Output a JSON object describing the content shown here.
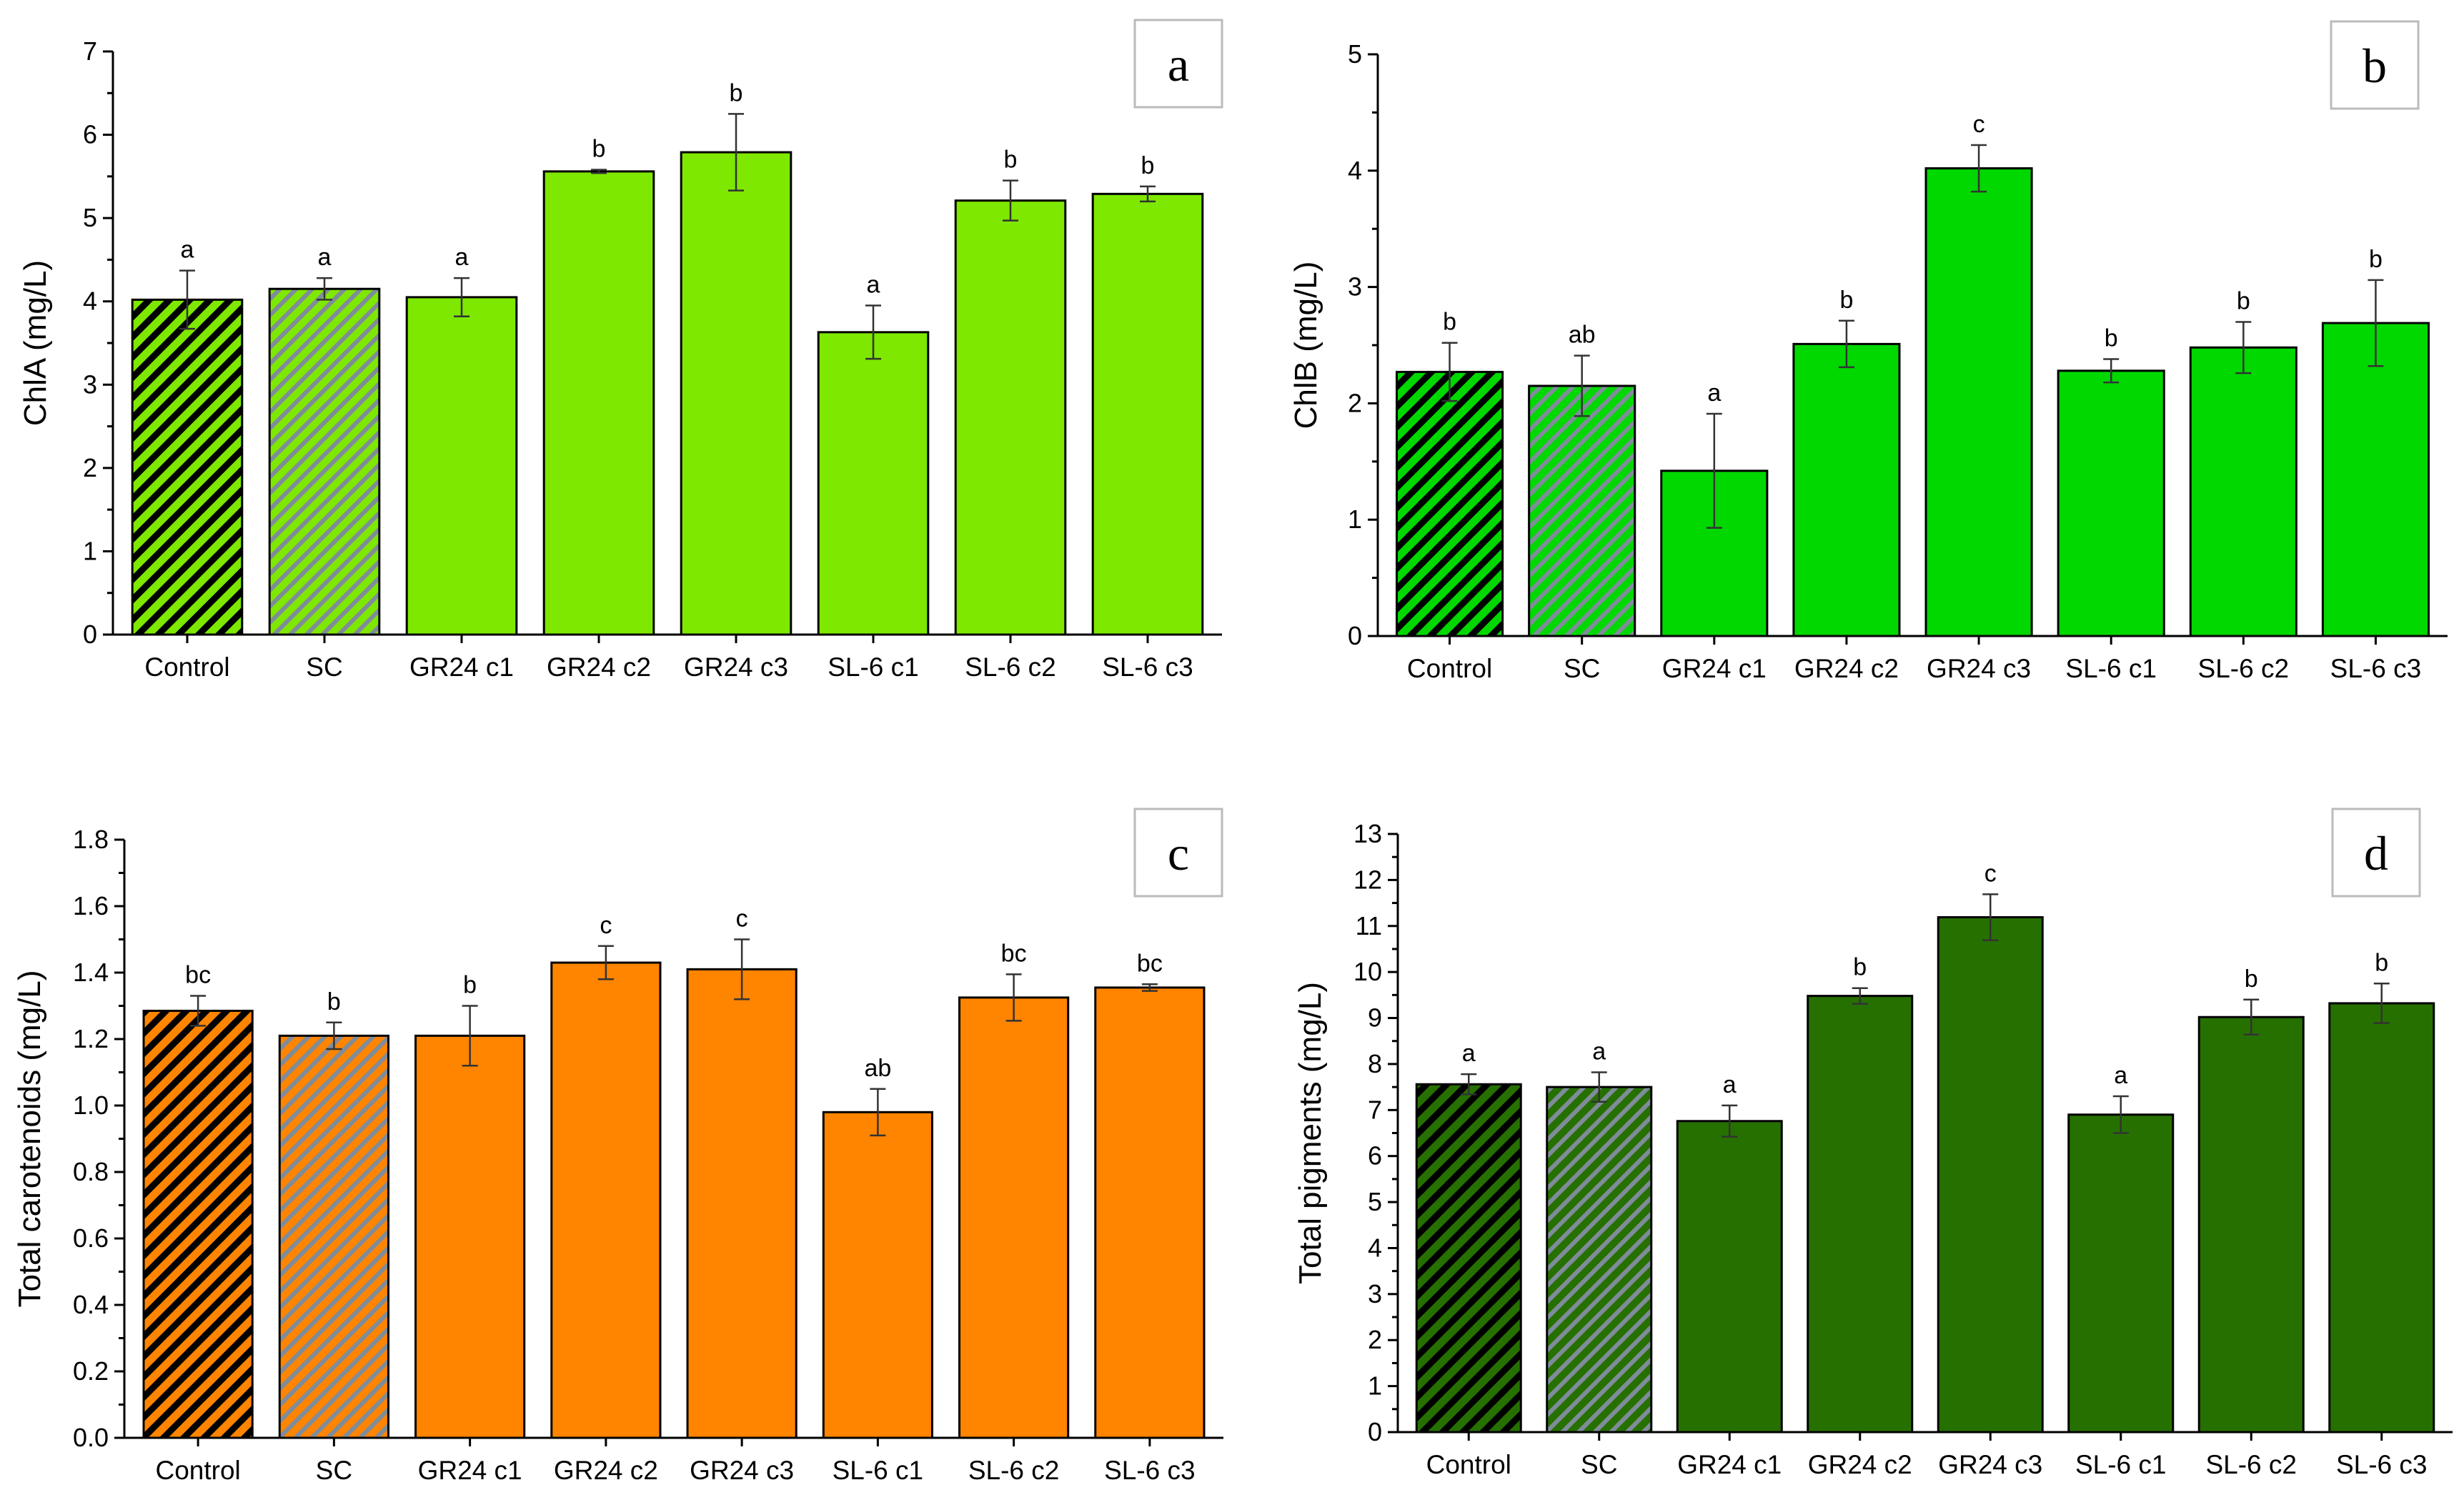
{
  "chart_data": [
    {
      "type": "bar",
      "panel": "a",
      "ylabel": "ChlA (mg/L)",
      "ylim": [
        0,
        7
      ],
      "yticks": [
        0,
        1,
        2,
        3,
        4,
        5,
        6,
        7
      ],
      "categories": [
        "Control",
        "SC",
        "GR24 c1",
        "GR24 c2",
        "GR24 c3",
        "SL-6 c1",
        "SL-6 c2",
        "SL-6 c3"
      ],
      "values": [
        4.02,
        4.15,
        4.05,
        5.56,
        5.79,
        3.63,
        5.21,
        5.29
      ],
      "errors": [
        0.35,
        0.13,
        0.23,
        0.02,
        0.46,
        0.32,
        0.24,
        0.09
      ],
      "significance": [
        "a",
        "a",
        "a",
        "b",
        "b",
        "a",
        "b",
        "b"
      ],
      "color": "#7ee800",
      "patterns": [
        "hatch-black",
        "hatch-grey",
        "solid",
        "solid",
        "solid",
        "solid",
        "solid",
        "solid"
      ]
    },
    {
      "type": "bar",
      "panel": "b",
      "ylabel": "ChlB (mg/L)",
      "ylim": [
        0,
        5
      ],
      "yticks": [
        0,
        1,
        2,
        3,
        4,
        5
      ],
      "categories": [
        "Control",
        "SC",
        "GR24 c1",
        "GR24 c2",
        "GR24 c3",
        "SL-6 c1",
        "SL-6 c2",
        "SL-6 c3"
      ],
      "values": [
        2.27,
        2.15,
        1.42,
        2.51,
        4.02,
        2.28,
        2.48,
        2.69
      ],
      "errors": [
        0.25,
        0.26,
        0.49,
        0.2,
        0.2,
        0.1,
        0.22,
        0.37
      ],
      "significance": [
        "b",
        "ab",
        "a",
        "b",
        "c",
        "b",
        "b",
        "b"
      ],
      "color": "#00d800",
      "patterns": [
        "hatch-black",
        "hatch-grey",
        "solid",
        "solid",
        "solid",
        "solid",
        "solid",
        "solid"
      ]
    },
    {
      "type": "bar",
      "panel": "c",
      "ylabel": "Total carotenoids (mg/L)",
      "ylim": [
        0,
        1.8
      ],
      "yticks": [
        "0.0",
        "0.2",
        "0.4",
        "0.6",
        "0.8",
        "1.0",
        "1.2",
        "1.4",
        "1.6",
        "1.8"
      ],
      "categories": [
        "Control",
        "SC",
        "GR24 c1",
        "GR24 c2",
        "GR24 c3",
        "SL-6 c1",
        "SL-6 c2",
        "SL-6 c3"
      ],
      "values": [
        1.285,
        1.21,
        1.21,
        1.43,
        1.41,
        0.98,
        1.325,
        1.355
      ],
      "errors": [
        0.045,
        0.04,
        0.09,
        0.05,
        0.09,
        0.07,
        0.07,
        0.01
      ],
      "significance": [
        "bc",
        "b",
        "b",
        "c",
        "c",
        "ab",
        "bc",
        "bc"
      ],
      "color": "#ff8400",
      "patterns": [
        "hatch-black",
        "hatch-grey",
        "solid",
        "solid",
        "solid",
        "solid",
        "solid",
        "solid"
      ]
    },
    {
      "type": "bar",
      "panel": "d",
      "ylabel": "Total pigments (mg/L)",
      "ylim": [
        0,
        13
      ],
      "yticks": [
        0,
        1,
        2,
        3,
        4,
        5,
        6,
        7,
        8,
        9,
        10,
        11,
        12,
        13
      ],
      "categories": [
        "Control",
        "SC",
        "GR24 c1",
        "GR24 c2",
        "GR24 c3",
        "SL-6 c1",
        "SL-6 c2",
        "SL-6 c3"
      ],
      "values": [
        7.56,
        7.5,
        6.76,
        9.48,
        11.19,
        6.9,
        9.02,
        9.32
      ],
      "errors": [
        0.22,
        0.32,
        0.34,
        0.17,
        0.5,
        0.4,
        0.38,
        0.43
      ],
      "significance": [
        "a",
        "a",
        "a",
        "b",
        "c",
        "a",
        "b",
        "b"
      ],
      "color": "#267000",
      "patterns": [
        "hatch-black",
        "hatch-grey",
        "solid",
        "solid",
        "solid",
        "solid",
        "solid",
        "solid"
      ]
    }
  ]
}
